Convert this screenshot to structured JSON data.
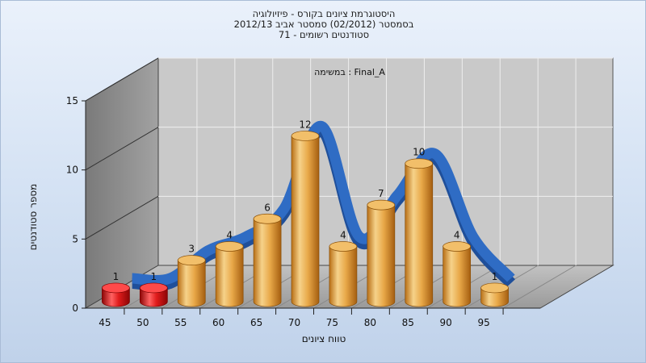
{
  "chart_data": {
    "type": "bar",
    "title": [
      "היסטוגרמת ציונים בקורס - פיזיולוגיה",
      "בסמסטר  (02/2012)  סמסטר אביב 2012/13",
      "סטודנטים רשומים - 71"
    ],
    "annotation": "במשימה : Final_A",
    "xlabel": "טווח ציונים",
    "ylabel": "מספר סטודנטים",
    "categories": [
      "45",
      "50",
      "55",
      "60",
      "65",
      "70",
      "75",
      "80",
      "85",
      "90",
      "95"
    ],
    "values": [
      1,
      1,
      3,
      4,
      6,
      12,
      4,
      7,
      10,
      4,
      1
    ],
    "bar_colors": [
      "#e01c1c",
      "#e01c1c",
      "#e8a848",
      "#e8a848",
      "#e8a848",
      "#e8a848",
      "#e8a848",
      "#e8a848",
      "#e8a848",
      "#e8a848",
      "#e8a848"
    ],
    "curve_color": "#2f6cc4",
    "ylim": [
      0,
      15
    ],
    "yticks": [
      0,
      5,
      10,
      15
    ],
    "grid": true,
    "style": "3d cylinders with smoothed distribution ribbon"
  }
}
